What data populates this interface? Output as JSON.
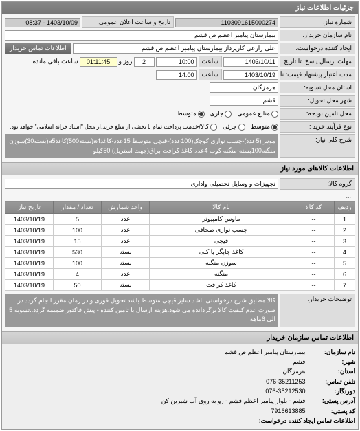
{
  "panel_title": "جزئیات اطلاعات نیاز",
  "fields": {
    "need_no_label": "شماره نیاز:",
    "need_no": "1103091615000274",
    "announce_label": "تاریخ و ساعت اعلان عمومی:",
    "announce_value": "1403/10/09 - 08:37",
    "buyer_label": "نام سازمان خریدار:",
    "buyer": "بیمارستان پیامبر اعظم ص  قشم",
    "requester_label": "ایجاد کننده درخواست:",
    "requester": "علی زارعی کارپرداز بیمارستان پیامبر اعظم ص  قشم",
    "contact_btn": "اطلاعات تماس خریدار",
    "deadline_label": "مهلت ارسال پاسخ: تا تاریخ:",
    "deadline_date": "1403/10/11",
    "time_label": "ساعت",
    "deadline_time": "10:00",
    "remain_days": "2",
    "remain_days_label": "روز و",
    "remain_time": "01:11:45",
    "remain_label": "ساعت باقی مانده",
    "validity_label": "مدت اعتبار پیشنهاد قیمت: تا تاریخ:",
    "validity_date": "1403/10/19",
    "validity_time": "14:00",
    "province_label": "استان محل تسویه:",
    "province": "هرمزگان",
    "city_label": "شهر محل تحویل:",
    "city": "قشم",
    "budget_label": "محل تامین بودجه:",
    "budget_opts": [
      "منابع عمومی",
      "جاری",
      "متوسط"
    ],
    "budget_checked": 2,
    "unit_label": "نوع فرآیند خرید :",
    "unit_opts": [
      "متوسط",
      "جزئی",
      "کالا/خدمت"
    ],
    "unit_note": "پرداخت تمام یا بخشی از مبلغ خرید،از محل \"اسناد خزانه اسلامی\" خواهد بود.",
    "unit_checked": 0,
    "subject_label": "شرح کلی نیاز:",
    "subject": "موس(5عدد)-چسب نواری کوچک(100عدد)-قیچی متوسط 15عدد-کاغذa4(بسته500)کاغذa5(بسته30)سوزن منگنه100بسته-منگنه کوب 4عدد-کاغذ کرافت براق(جهت استریل) 50کیلو"
  },
  "goods_section_title": "اطلاعات کالاهای مورد نیاز",
  "group_label": "گروه کالا:",
  "group_value": "تجهیزات و وسایل تحصیلی واداری",
  "etc": "...",
  "table": {
    "headers": [
      "ردیف",
      "کد کالا",
      "نام کالا",
      "واحد شمارش",
      "تعداد / مقدار",
      "تاریخ نیاز"
    ],
    "rows": [
      [
        "1",
        "--",
        "ماوس کامپیوتر",
        "عدد",
        "5",
        "1403/10/19"
      ],
      [
        "2",
        "--",
        "چسب نواری صحافی",
        "عدد",
        "100",
        "1403/10/19"
      ],
      [
        "3",
        "--",
        "قیچی",
        "عدد",
        "15",
        "1403/10/19"
      ],
      [
        "4",
        "--",
        "کاغذ چاپگر یا کپی",
        "بسته",
        "530",
        "1403/10/19"
      ],
      [
        "5",
        "--",
        "سوزن منگنه",
        "بسته",
        "100",
        "1403/10/19"
      ],
      [
        "6",
        "--",
        "منگنه",
        "عدد",
        "4",
        "1403/10/19"
      ],
      [
        "7",
        "--",
        "کاغذ کرافت",
        "بسته",
        "50",
        "1403/10/19"
      ]
    ]
  },
  "notes_label": "توضیحات خریدار:",
  "notes": "کالا مطابق شرح درخواستی باشد.سایز قیچی متوسط باشد.تحویل فوری و در زمان مقرر انجام گردد.در صورت عدم کیفیت کالا برگردانده می شود.هزینه ارسال با تامین کننده - پیش فاکتور ضمیمه گردد..تسویه 5 الی 6ماهه",
  "buyer_section_title": "اطلاعات تماس سازمان خریدار",
  "buyer_info": {
    "org_label": "نام سازمان:",
    "org": "بیمارستان پیامبر اعظم ص قشم",
    "city_label": "شهر:",
    "city": "قشم",
    "prov_label": "استان:",
    "prov": "هرمزگان",
    "tel_label": "تلفن تماس:",
    "tel": "076-35211253",
    "fax_label": "دورنگار:",
    "fax": "076-35212530",
    "addr_label": "آدرس پستی:",
    "addr": "قشم - بلوار پیامبر اعظم قشم - رو به روی آب شیرین کن",
    "zip_label": "کد پستی:",
    "zip": "7916613885",
    "req_contact_label": "اطلاعات تماس ایجاد کننده درخواست:"
  },
  "colors": {
    "header_bg": "#888888",
    "header_fg": "#ffffff",
    "label_bg": "#dddddd",
    "field_bg": "#ffffff",
    "desc_bg": "#999999"
  }
}
